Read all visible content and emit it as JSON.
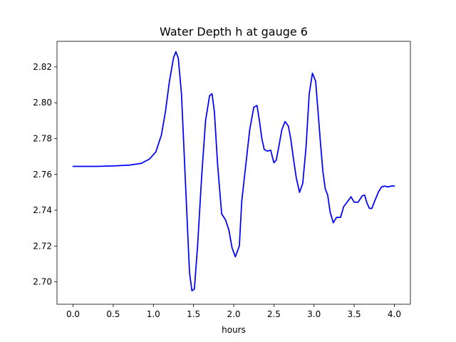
{
  "chart_data": {
    "type": "line",
    "title": "Water Depth h at gauge 6",
    "xlabel": "hours",
    "ylabel": "",
    "xlim": [
      -0.2,
      4.2
    ],
    "ylim": [
      2.6875,
      2.8343
    ],
    "xticks": [
      0.0,
      0.5,
      1.0,
      1.5,
      2.0,
      2.5,
      3.0,
      3.5,
      4.0
    ],
    "xtick_labels": [
      "0.0",
      "0.5",
      "1.0",
      "1.5",
      "2.0",
      "2.5",
      "3.0",
      "3.5",
      "4.0"
    ],
    "yticks": [
      2.7,
      2.72,
      2.74,
      2.76,
      2.78,
      2.8,
      2.82
    ],
    "ytick_labels": [
      "2.70",
      "2.72",
      "2.74",
      "2.76",
      "2.78",
      "2.80",
      "2.82"
    ],
    "grid": false,
    "series": [
      {
        "color": "#0000ff",
        "x": [
          0.0,
          0.3,
          0.5,
          0.7,
          0.85,
          0.95,
          1.03,
          1.1,
          1.15,
          1.2,
          1.25,
          1.28,
          1.31,
          1.35,
          1.38,
          1.42,
          1.45,
          1.48,
          1.51,
          1.55,
          1.6,
          1.65,
          1.7,
          1.73,
          1.76,
          1.8,
          1.85,
          1.9,
          1.94,
          1.98,
          2.02,
          2.07,
          2.1,
          2.15,
          2.2,
          2.25,
          2.29,
          2.32,
          2.35,
          2.38,
          2.42,
          2.46,
          2.5,
          2.53,
          2.56,
          2.6,
          2.64,
          2.68,
          2.71,
          2.74,
          2.78,
          2.82,
          2.86,
          2.9,
          2.94,
          2.98,
          3.02,
          3.05,
          3.08,
          3.11,
          3.14,
          3.17,
          3.2,
          3.24,
          3.28,
          3.33,
          3.37,
          3.42,
          3.46,
          3.5,
          3.55,
          3.6,
          3.63,
          3.66,
          3.69,
          3.72,
          3.75,
          3.8,
          3.84,
          3.88,
          3.92,
          3.96,
          4.0
        ],
        "values": [
          2.7645,
          2.7645,
          2.7647,
          2.7652,
          2.7662,
          2.7685,
          2.7725,
          2.782,
          2.795,
          2.812,
          2.825,
          2.8285,
          2.825,
          2.805,
          2.775,
          2.735,
          2.705,
          2.695,
          2.696,
          2.72,
          2.758,
          2.79,
          2.804,
          2.805,
          2.795,
          2.765,
          2.738,
          2.7345,
          2.729,
          2.719,
          2.714,
          2.72,
          2.745,
          2.765,
          2.785,
          2.7975,
          2.7985,
          2.79,
          2.78,
          2.774,
          2.773,
          2.7735,
          2.7665,
          2.768,
          2.775,
          2.785,
          2.7895,
          2.787,
          2.78,
          2.77,
          2.758,
          2.75,
          2.755,
          2.775,
          2.805,
          2.8165,
          2.812,
          2.795,
          2.778,
          2.762,
          2.752,
          2.7485,
          2.739,
          2.733,
          2.736,
          2.736,
          2.742,
          2.745,
          2.7475,
          2.7445,
          2.7445,
          2.748,
          2.7485,
          2.744,
          2.741,
          2.741,
          2.7445,
          2.75,
          2.753,
          2.7535,
          2.753,
          2.7535,
          2.7535
        ]
      }
    ]
  }
}
